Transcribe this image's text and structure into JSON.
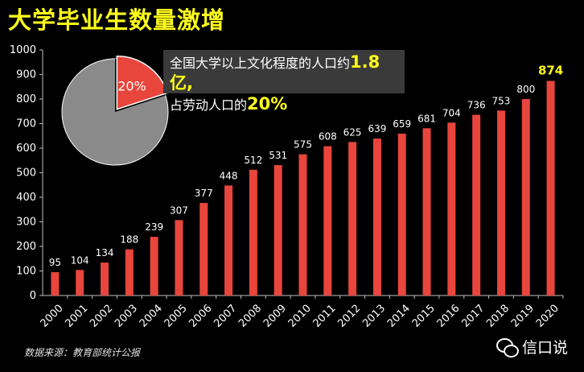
{
  "title": "大学毕业生数量激增",
  "callout": {
    "line1_prefix": "全国大学以上文化程度的人口约",
    "line1_highlight": "1.8亿,",
    "line2_prefix": "占劳动人口的",
    "line2_highlight": "20%"
  },
  "source": "数据来源：教育部统计公报",
  "watermark": "信口说",
  "colors": {
    "bar": "#e8453c",
    "highlight": "#ffff1a",
    "pie_main": "#8a8a8a",
    "pie_slice": "#e8453c"
  },
  "chart_data": [
    {
      "type": "bar",
      "title": "",
      "xlabel": "",
      "ylabel": "",
      "categories": [
        "2000",
        "2001",
        "2002",
        "2003",
        "2004",
        "2005",
        "2006",
        "2007",
        "2008",
        "2009",
        "2010",
        "2011",
        "2012",
        "2013",
        "2014",
        "2015",
        "2016",
        "2017",
        "2018",
        "2019",
        "2020"
      ],
      "values": [
        95,
        104,
        134,
        188,
        239,
        307,
        377,
        448,
        512,
        531,
        575,
        608,
        625,
        639,
        659,
        681,
        704,
        736,
        753,
        800,
        874
      ],
      "ylim": [
        0,
        1000
      ],
      "yticks": [
        0,
        100,
        200,
        300,
        400,
        500,
        600,
        700,
        800,
        900,
        1000
      ],
      "grid": false,
      "highlight_last": true
    },
    {
      "type": "pie",
      "slices": [
        {
          "label": "20%",
          "value": 20
        },
        {
          "label": "",
          "value": 80
        }
      ]
    }
  ]
}
